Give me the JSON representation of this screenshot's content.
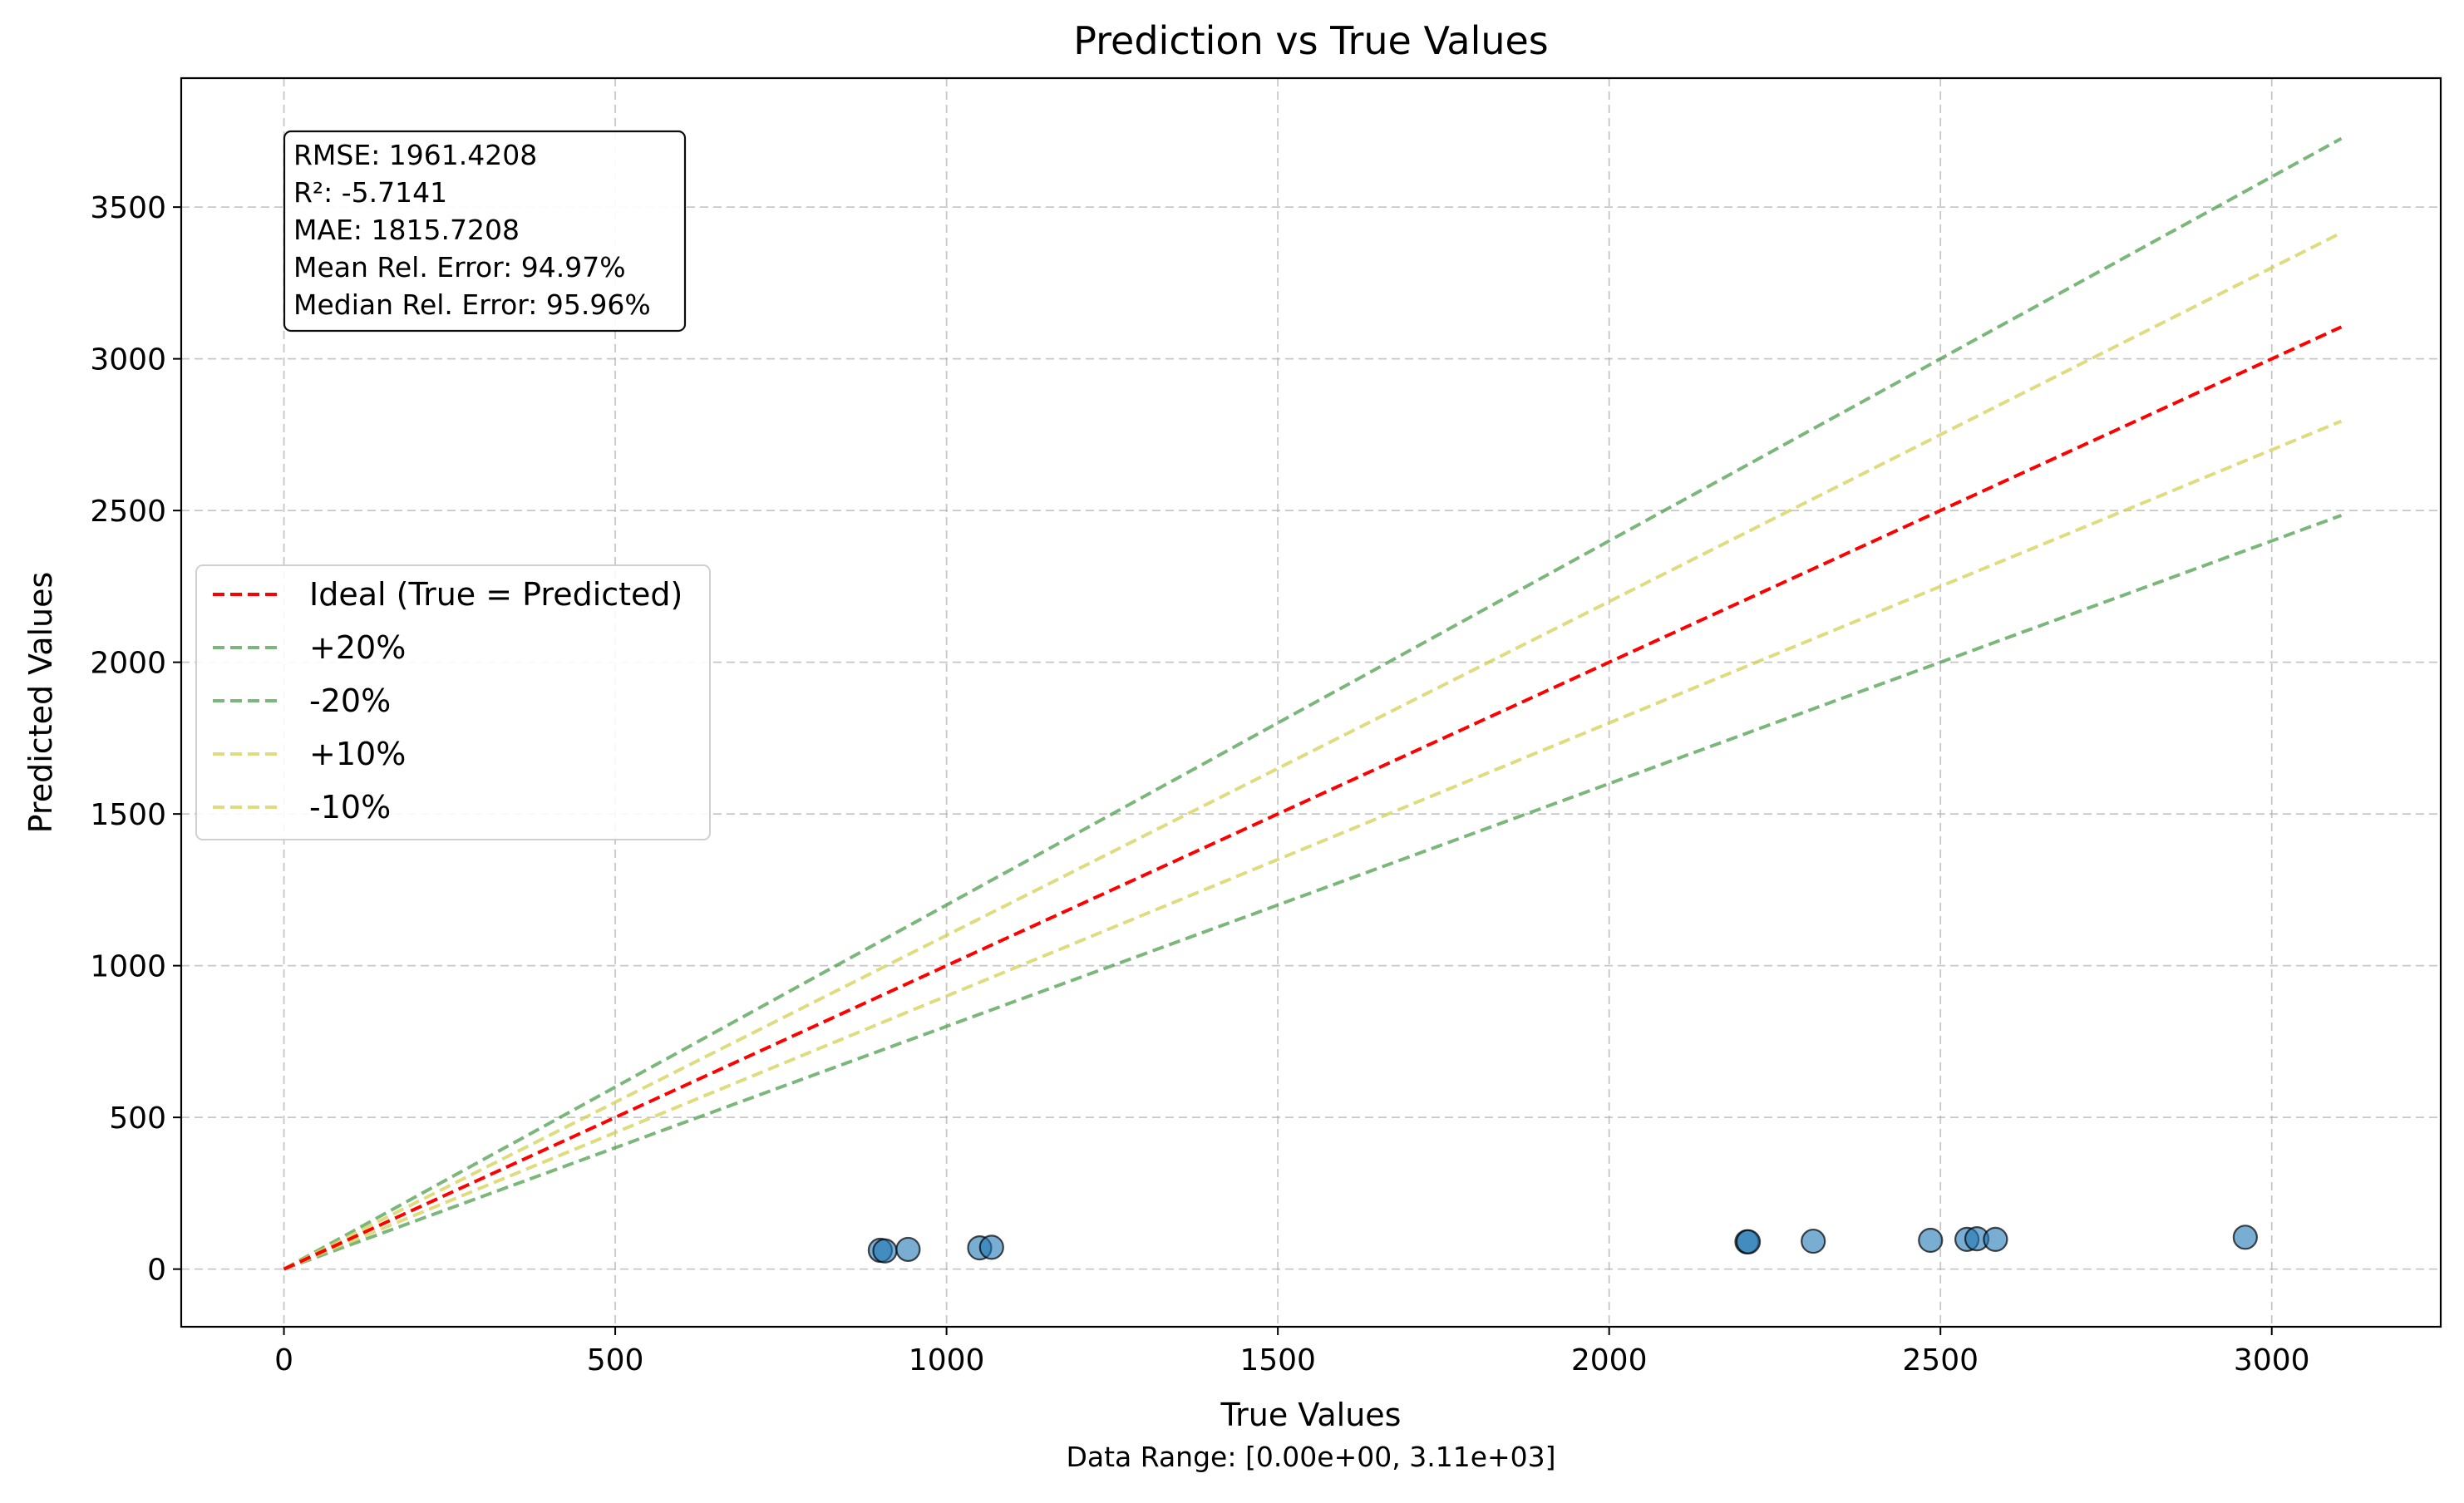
{
  "chart_data": {
    "type": "scatter",
    "title": "Prediction vs True Values",
    "xlabel": "True Values",
    "ylabel": "Predicted Values",
    "footnote": "Data Range: [0.00e+00, 3.11e+03]",
    "xlim": [
      -155,
      3255
    ],
    "ylim": [
      -190,
      3925
    ],
    "xticks": [
      0,
      500,
      1000,
      1500,
      2000,
      2500,
      3000
    ],
    "yticks": [
      0,
      500,
      1000,
      1500,
      2000,
      2500,
      3000,
      3500
    ],
    "grid": true,
    "legend_position": "center-left",
    "stats_box_position": "top-left",
    "stats": [
      "RMSE: 1961.4208",
      "R²: -5.7141",
      "MAE: 1815.7208",
      "Mean Rel. Error: 94.97%",
      "Median Rel. Error: 95.96%"
    ],
    "reference_lines": [
      {
        "name": "Ideal (True = Predicted)",
        "slope": 1.0,
        "x_range": [
          0,
          3105
        ],
        "color": "#ff0000",
        "opacity": 1.0
      },
      {
        "name": "+20%",
        "slope": 1.2,
        "x_range": [
          0,
          3105
        ],
        "color": "#4f9f4f",
        "opacity": 0.75
      },
      {
        "name": "-20%",
        "slope": 0.8,
        "x_range": [
          0,
          3105
        ],
        "color": "#4f9f4f",
        "opacity": 0.75
      },
      {
        "name": "+10%",
        "slope": 1.1,
        "x_range": [
          0,
          3105
        ],
        "color": "#d4d154",
        "opacity": 0.75
      },
      {
        "name": "-10%",
        "slope": 0.9,
        "x_range": [
          0,
          3105
        ],
        "color": "#d4d154",
        "opacity": 0.75
      }
    ],
    "points": {
      "color": "#1f77b4",
      "x": [
        900,
        907,
        942,
        1050,
        1068,
        2208,
        2210,
        2308,
        2485,
        2540,
        2555,
        2583,
        2960
      ],
      "y": [
        62,
        60,
        65,
        70,
        72,
        90,
        90,
        92,
        95,
        98,
        100,
        98,
        105
      ]
    }
  }
}
